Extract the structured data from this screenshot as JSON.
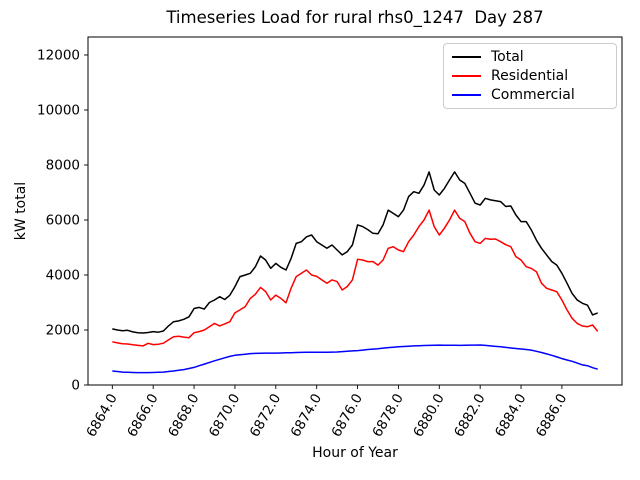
{
  "figure": {
    "background": "#ffffff"
  },
  "chart_data": {
    "type": "line",
    "title": "Timeseries Load for rural rhs0_1247  Day 287",
    "xlabel": "Hour of Year",
    "ylabel": "kW total",
    "xlim": [
      6862.81,
      6888.94
    ],
    "ylim": [
      0,
      12654
    ],
    "grid": false,
    "legend": {
      "position": "upper right",
      "border_color": "#cccccc"
    },
    "xticks": {
      "values": [
        6864,
        6866,
        6868,
        6870,
        6872,
        6874,
        6876,
        6878,
        6880,
        6882,
        6884,
        6886
      ],
      "labels": [
        "6864.0",
        "6866.0",
        "6868.0",
        "6870.0",
        "6872.0",
        "6874.0",
        "6876.0",
        "6878.0",
        "6880.0",
        "6882.0",
        "6884.0",
        "6886.0"
      ],
      "rotation": 60
    },
    "yticks": {
      "values": [
        0,
        2000,
        4000,
        6000,
        8000,
        10000,
        12000
      ],
      "labels": [
        "0",
        "2000",
        "4000",
        "6000",
        "8000",
        "10000",
        "12000"
      ]
    },
    "x": [
      6864.0,
      6864.25,
      6864.5,
      6864.75,
      6865.0,
      6865.25,
      6865.5,
      6865.75,
      6866.0,
      6866.25,
      6866.5,
      6866.75,
      6867.0,
      6867.25,
      6867.5,
      6867.75,
      6868.0,
      6868.25,
      6868.5,
      6868.75,
      6869.0,
      6869.25,
      6869.5,
      6869.75,
      6870.0,
      6870.25,
      6870.5,
      6870.75,
      6871.0,
      6871.25,
      6871.5,
      6871.75,
      6872.0,
      6872.25,
      6872.5,
      6872.75,
      6873.0,
      6873.25,
      6873.5,
      6873.75,
      6874.0,
      6874.25,
      6874.5,
      6874.75,
      6875.0,
      6875.25,
      6875.5,
      6875.75,
      6876.0,
      6876.25,
      6876.5,
      6876.75,
      6877.0,
      6877.25,
      6877.5,
      6877.75,
      6878.0,
      6878.25,
      6878.5,
      6878.75,
      6879.0,
      6879.25,
      6879.5,
      6879.75,
      6880.0,
      6880.25,
      6880.5,
      6880.75,
      6881.0,
      6881.25,
      6881.5,
      6881.75,
      6882.0,
      6882.25,
      6882.5,
      6882.75,
      6883.0,
      6883.25,
      6883.5,
      6883.75,
      6884.0,
      6884.25,
      6884.5,
      6884.75,
      6885.0,
      6885.25,
      6885.5,
      6885.75,
      6886.0,
      6886.25,
      6886.5,
      6886.75,
      6887.0,
      6887.25,
      6887.5,
      6887.75
    ],
    "series": [
      {
        "name": "Total",
        "color": "#000000",
        "values": [
          2040,
          2000,
          1975,
          1990,
          1930,
          1900,
          1890,
          1910,
          1940,
          1920,
          1965,
          2150,
          2300,
          2330,
          2390,
          2480,
          2780,
          2820,
          2760,
          3000,
          3090,
          3210,
          3110,
          3260,
          3575,
          3940,
          4000,
          4060,
          4300,
          4690,
          4545,
          4245,
          4420,
          4280,
          4180,
          4605,
          5150,
          5210,
          5390,
          5455,
          5210,
          5090,
          4970,
          5090,
          4910,
          4730,
          4850,
          5090,
          5820,
          5760,
          5650,
          5515,
          5500,
          5820,
          6360,
          6240,
          6120,
          6360,
          6850,
          7030,
          6970,
          7270,
          7750,
          7090,
          6910,
          7150,
          7455,
          7750,
          7455,
          7330,
          6970,
          6610,
          6545,
          6790,
          6730,
          6700,
          6670,
          6490,
          6510,
          6180,
          5940,
          5940,
          5640,
          5270,
          4970,
          4730,
          4490,
          4360,
          4060,
          3700,
          3330,
          3090,
          2970,
          2900,
          2550,
          2620
        ]
      },
      {
        "name": "Residential",
        "color": "#ff0000",
        "values": [
          1570,
          1530,
          1500,
          1490,
          1460,
          1440,
          1420,
          1515,
          1470,
          1480,
          1520,
          1640,
          1755,
          1770,
          1740,
          1720,
          1900,
          1940,
          2000,
          2120,
          2240,
          2150,
          2220,
          2300,
          2620,
          2730,
          2850,
          3150,
          3300,
          3550,
          3400,
          3090,
          3270,
          3150,
          2990,
          3520,
          3940,
          4060,
          4180,
          4000,
          3950,
          3820,
          3700,
          3820,
          3760,
          3455,
          3580,
          3820,
          4570,
          4545,
          4485,
          4490,
          4360,
          4545,
          4970,
          5030,
          4910,
          4850,
          5210,
          5455,
          5760,
          6000,
          6360,
          5760,
          5455,
          5700,
          6000,
          6360,
          6060,
          5940,
          5515,
          5210,
          5150,
          5330,
          5300,
          5310,
          5210,
          5100,
          5030,
          4670,
          4545,
          4303,
          4240,
          4120,
          3700,
          3515,
          3455,
          3394,
          3090,
          2730,
          2424,
          2240,
          2145,
          2120,
          2180,
          1950
        ]
      },
      {
        "name": "Commercial",
        "color": "#0000ff",
        "values": [
          510,
          490,
          470,
          460,
          455,
          450,
          450,
          450,
          455,
          460,
          470,
          490,
          510,
          535,
          560,
          600,
          640,
          700,
          760,
          820,
          880,
          935,
          990,
          1040,
          1080,
          1100,
          1120,
          1140,
          1150,
          1155,
          1160,
          1160,
          1160,
          1165,
          1170,
          1175,
          1180,
          1185,
          1190,
          1190,
          1190,
          1190,
          1190,
          1195,
          1200,
          1215,
          1230,
          1240,
          1250,
          1270,
          1290,
          1305,
          1320,
          1340,
          1360,
          1375,
          1390,
          1400,
          1410,
          1420,
          1430,
          1435,
          1440,
          1445,
          1450,
          1448,
          1445,
          1442,
          1440,
          1445,
          1450,
          1452,
          1455,
          1440,
          1420,
          1405,
          1390,
          1368,
          1345,
          1328,
          1310,
          1290,
          1270,
          1225,
          1180,
          1130,
          1080,
          1020,
          960,
          910,
          860,
          795,
          730,
          700,
          630,
          575
        ]
      }
    ]
  }
}
